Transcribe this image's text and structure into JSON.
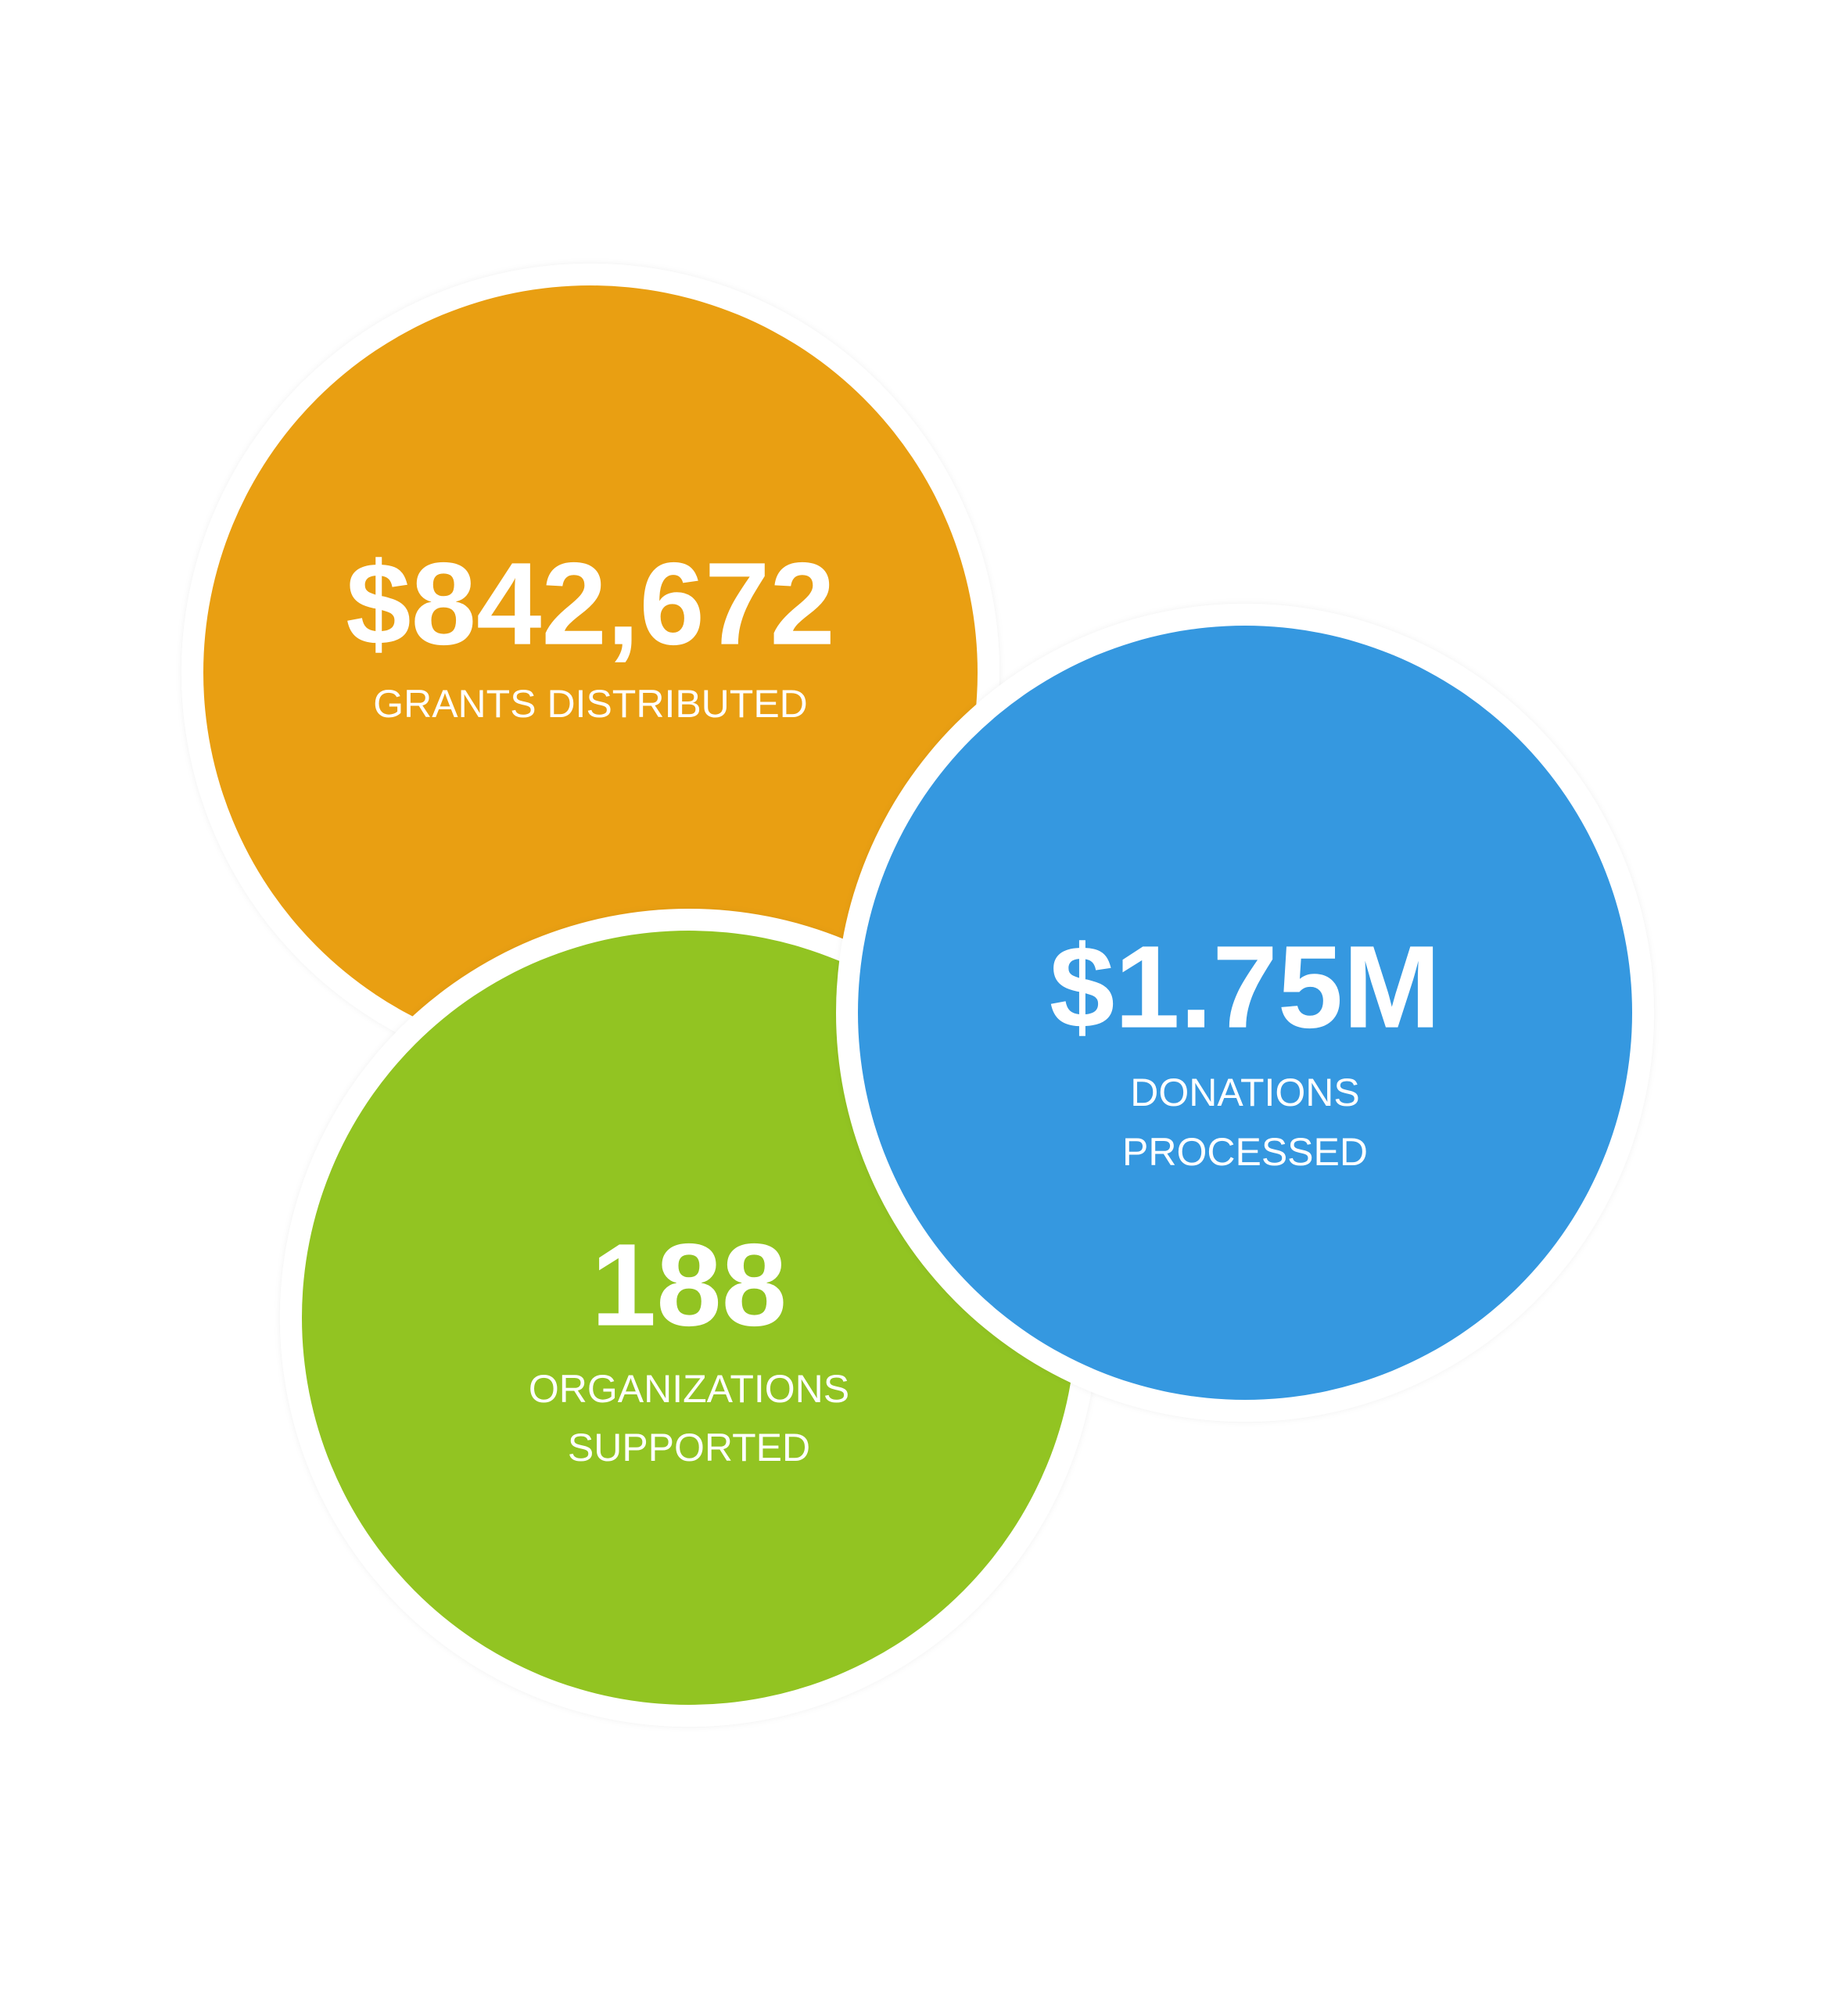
{
  "stats": [
    {
      "value": "$842,672",
      "label": [
        "GRANTS DISTRIBUTED"
      ],
      "color": "#E99F12"
    },
    {
      "value": "188",
      "label": [
        "ORGANIZATIONS",
        "SUPPORTED"
      ],
      "color": "#92C422"
    },
    {
      "value": "$1.75M",
      "label": [
        "DONATIONS",
        "PROCESSED"
      ],
      "color": "#3598E0"
    }
  ]
}
